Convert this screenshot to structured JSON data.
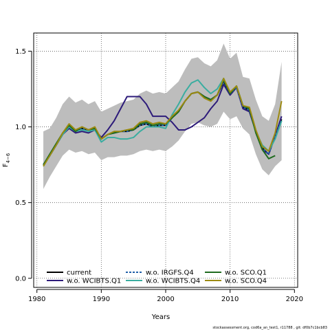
{
  "chart_data": {
    "type": "line",
    "title": "",
    "xlabel": "Years",
    "ylabel": "F",
    "ylabel_sub": "4−6",
    "xlim": [
      1979.5,
      2020.5
    ],
    "ylim": [
      -0.06,
      1.62
    ],
    "x_ticks": [
      1980,
      1990,
      2000,
      2010,
      2020
    ],
    "y_ticks": [
      0.0,
      0.5,
      1.0,
      1.5
    ],
    "y_tick_labels": [
      "0.0",
      "0.5",
      "1.0",
      "1.5"
    ],
    "grid": true,
    "legend_position": "bottom-left",
    "caption": "stockassessment.org, cod6a_an_test1, r11788 , git: df0b7c1bcb83",
    "band": {
      "color": "#bdbdbd",
      "x": [
        1981,
        1982,
        1983,
        1984,
        1985,
        1986,
        1987,
        1988,
        1989,
        1990,
        1991,
        1992,
        1993,
        1994,
        1995,
        1996,
        1997,
        1998,
        1999,
        2000,
        2001,
        2002,
        2003,
        2004,
        2005,
        2006,
        2007,
        2008,
        2009,
        2010,
        2011,
        2012,
        2013,
        2014,
        2015,
        2016,
        2017,
        2018
      ],
      "upper": [
        0.97,
        0.99,
        1.06,
        1.15,
        1.2,
        1.16,
        1.18,
        1.15,
        1.17,
        1.1,
        1.12,
        1.14,
        1.16,
        1.17,
        1.18,
        1.22,
        1.24,
        1.22,
        1.23,
        1.22,
        1.26,
        1.3,
        1.38,
        1.45,
        1.46,
        1.42,
        1.4,
        1.44,
        1.55,
        1.45,
        1.49,
        1.33,
        1.32,
        1.18,
        1.07,
        1.04,
        1.15,
        1.43
      ],
      "lower": [
        0.59,
        0.67,
        0.74,
        0.81,
        0.85,
        0.83,
        0.84,
        0.82,
        0.83,
        0.78,
        0.8,
        0.8,
        0.81,
        0.81,
        0.82,
        0.84,
        0.85,
        0.84,
        0.85,
        0.84,
        0.87,
        0.91,
        0.97,
        1.02,
        1.03,
        1.01,
        1.0,
        1.02,
        1.1,
        1.05,
        1.07,
        0.99,
        0.95,
        0.82,
        0.72,
        0.68,
        0.74,
        0.78
      ]
    },
    "x": [
      1981,
      1982,
      1983,
      1984,
      1985,
      1986,
      1987,
      1988,
      1989,
      1990,
      1991,
      1992,
      1993,
      1994,
      1995,
      1996,
      1997,
      1998,
      1999,
      2000,
      2001,
      2002,
      2003,
      2004,
      2005,
      2006,
      2007,
      2008,
      2009,
      2010,
      2011,
      2012,
      2013,
      2014,
      2015,
      2016,
      2017,
      2018
    ],
    "series": [
      {
        "name": "current",
        "color": "#000000",
        "dash": "solid",
        "values": [
          0.75,
          0.81,
          0.88,
          0.95,
          1.0,
          0.97,
          0.99,
          0.98,
          0.99,
          0.92,
          0.95,
          0.96,
          0.97,
          0.97,
          0.98,
          1.01,
          1.02,
          1.0,
          1.01,
          1.01,
          1.06,
          1.1,
          1.17,
          1.22,
          1.23,
          1.2,
          1.18,
          1.21,
          1.3,
          1.22,
          1.26,
          1.13,
          1.11,
          0.97,
          0.86,
          0.82,
          0.94,
          1.05
        ]
      },
      {
        "name": "w.o. WCIBTS.Q1",
        "color": "#2d1b7a",
        "dash": "solid",
        "values": [
          0.75,
          0.81,
          0.88,
          0.95,
          0.99,
          0.96,
          0.97,
          0.96,
          0.98,
          0.93,
          0.98,
          1.04,
          1.12,
          1.2,
          1.2,
          1.2,
          1.15,
          1.07,
          1.07,
          1.07,
          1.03,
          0.98,
          0.98,
          1.0,
          1.03,
          1.06,
          1.12,
          1.17,
          1.28,
          1.21,
          1.26,
          1.12,
          1.1,
          0.97,
          0.85,
          0.82,
          0.94,
          1.07
        ]
      },
      {
        "name": "w.o. IRGFS.Q4",
        "color": "#1f5fa8",
        "dash": "dashed",
        "values": [
          0.75,
          0.81,
          0.88,
          0.95,
          1.0,
          0.97,
          0.99,
          0.98,
          0.99,
          0.92,
          0.95,
          0.96,
          0.97,
          0.97,
          0.98,
          1.01,
          1.02,
          1.0,
          1.01,
          1.01,
          1.06,
          1.1,
          1.17,
          1.22,
          1.23,
          1.2,
          1.18,
          1.21,
          1.3,
          1.22,
          1.26,
          1.13,
          1.11,
          0.97,
          0.86,
          0.82,
          0.94,
          1.04
        ]
      },
      {
        "name": "w.o. WCIBTS.Q4",
        "color": "#3aada0",
        "dash": "solid",
        "values": [
          0.74,
          0.81,
          0.88,
          0.95,
          1.0,
          0.97,
          0.98,
          0.97,
          0.98,
          0.9,
          0.93,
          0.93,
          0.92,
          0.92,
          0.93,
          0.97,
          1.0,
          1.0,
          1.0,
          0.99,
          1.08,
          1.15,
          1.23,
          1.29,
          1.31,
          1.26,
          1.22,
          1.25,
          1.32,
          1.22,
          1.27,
          1.14,
          1.12,
          0.97,
          0.88,
          0.84,
          0.92,
          1.04
        ]
      },
      {
        "name": "w.o. SCO.Q1",
        "color": "#1e6b1e",
        "dash": "solid",
        "values": [
          0.75,
          0.82,
          0.89,
          0.96,
          1.01,
          0.97,
          1.0,
          0.98,
          0.99,
          0.92,
          0.95,
          0.96,
          0.97,
          0.98,
          0.98,
          1.02,
          1.03,
          1.01,
          1.02,
          1.02,
          1.06,
          1.1,
          1.17,
          1.22,
          1.23,
          1.2,
          1.18,
          1.21,
          1.31,
          1.22,
          1.27,
          1.14,
          1.12,
          0.96,
          0.85,
          0.79,
          0.81,
          null
        ]
      },
      {
        "name": "w.o. SCO.Q4",
        "color": "#9c8a12",
        "dash": "solid",
        "values": [
          0.74,
          0.81,
          0.88,
          0.96,
          1.02,
          0.98,
          1.0,
          0.98,
          1.0,
          0.92,
          0.95,
          0.97,
          0.97,
          0.98,
          0.99,
          1.03,
          1.04,
          1.02,
          1.03,
          1.02,
          1.07,
          1.11,
          1.17,
          1.22,
          1.23,
          1.19,
          1.17,
          1.21,
          1.32,
          1.23,
          1.27,
          1.14,
          1.13,
          0.98,
          0.87,
          0.84,
          0.96,
          1.17
        ]
      }
    ]
  }
}
